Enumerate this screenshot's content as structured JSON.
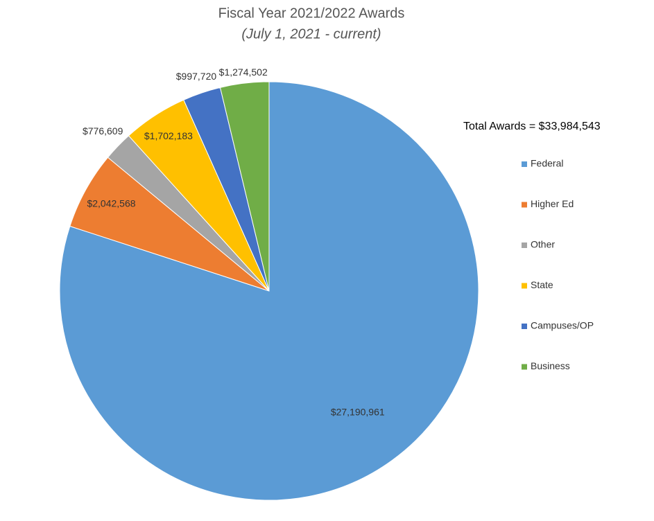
{
  "chart_data": {
    "type": "pie",
    "title": "Fiscal Year 2021/2022 Awards",
    "subtitle": "(July 1, 2021 - current)",
    "annotation": "Total Awards = $33,984,543",
    "categories": [
      "Federal",
      "Higher Ed",
      "Other",
      "State",
      "Campuses/OP",
      "Business"
    ],
    "values": [
      27190961,
      2042568,
      776609,
      1702183,
      997720,
      1274502
    ],
    "value_labels": [
      "$27,190,961",
      "$2,042,568",
      "$776,609",
      "$1,702,183",
      "$997,720",
      "$1,274,502"
    ],
    "colors": [
      "#5b9bd5",
      "#ed7d31",
      "#a5a5a5",
      "#ffc000",
      "#4472c4",
      "#70ad47"
    ],
    "legend": "right"
  }
}
